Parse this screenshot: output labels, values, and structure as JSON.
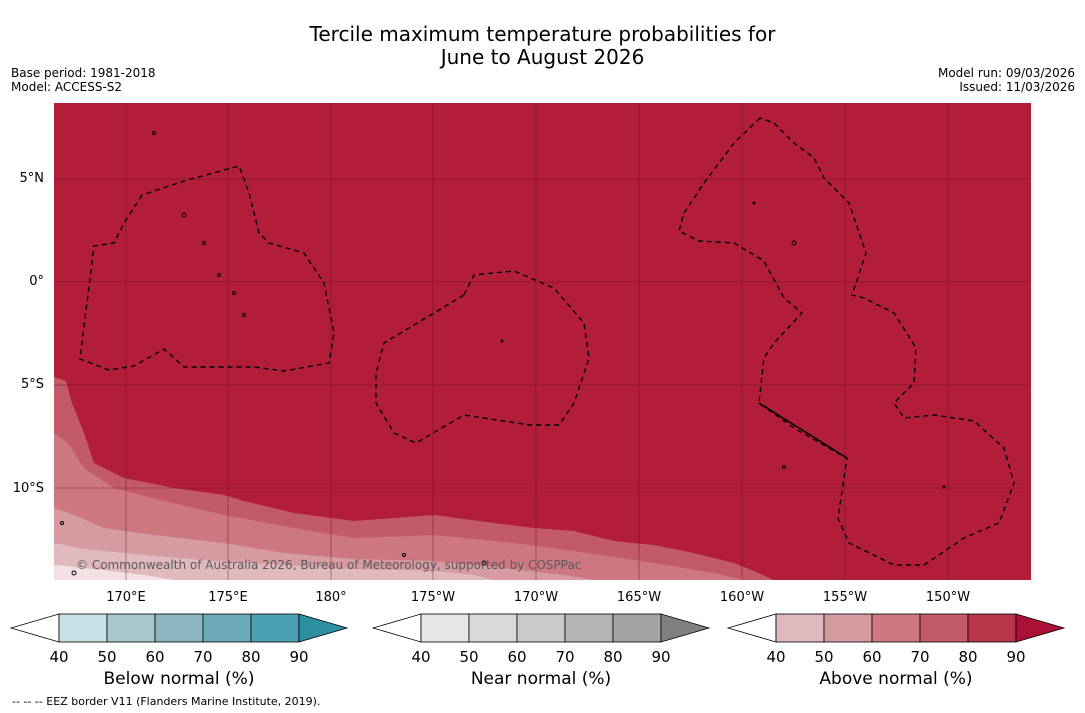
{
  "header": {
    "title_line1": "Tercile maximum temperature probabilities for",
    "title_line2": "June to August 2026",
    "base_period": "Base period: 1981-2018",
    "model": "Model: ACCESS-S2",
    "model_run": "Model run: 09/03/2026",
    "issued": "Issued: 11/03/2026"
  },
  "map": {
    "lat_ticks": [
      "5°N",
      "0°",
      "5°S",
      "10°S"
    ],
    "lon_ticks": [
      "170°E",
      "175°E",
      "180°",
      "175°W",
      "170°W",
      "165°W",
      "160°W",
      "155°W",
      "150°W"
    ],
    "copyright": "© Commonwealth of Australia 2026, Bureau of Meteorology, supported by COSPPac",
    "dominant_category": "Above normal",
    "dominant_probability_range": "90+",
    "background_color": "#b21e3a",
    "eez_line_style": "dashed"
  },
  "colorbars": [
    {
      "title": "Below normal (%)",
      "ticks": [
        "40",
        "50",
        "60",
        "70",
        "80",
        "90"
      ],
      "colors": [
        "#ffffff",
        "#c8e1e7",
        "#a9c8cd",
        "#8bb5bf",
        "#6aabb7",
        "#4aa0b0",
        "#2f8fa2"
      ]
    },
    {
      "title": "Near normal (%)",
      "ticks": [
        "40",
        "50",
        "60",
        "70",
        "80",
        "90"
      ],
      "colors": [
        "#ffffff",
        "#e6e6e6",
        "#d9d9d9",
        "#cacaca",
        "#b5b5b5",
        "#a3a3a3",
        "#808080"
      ]
    },
    {
      "title": "Above normal (%)",
      "ticks": [
        "40",
        "50",
        "60",
        "70",
        "80",
        "90"
      ],
      "colors": [
        "#ffffff",
        "#e0b9bf",
        "#d69aa1",
        "#cd7780",
        "#c35a67",
        "#b9354a",
        "#aa1237"
      ]
    }
  ],
  "footnote": "--  --  -- EEZ border V11 (Flanders Marine Institute, 2019)."
}
